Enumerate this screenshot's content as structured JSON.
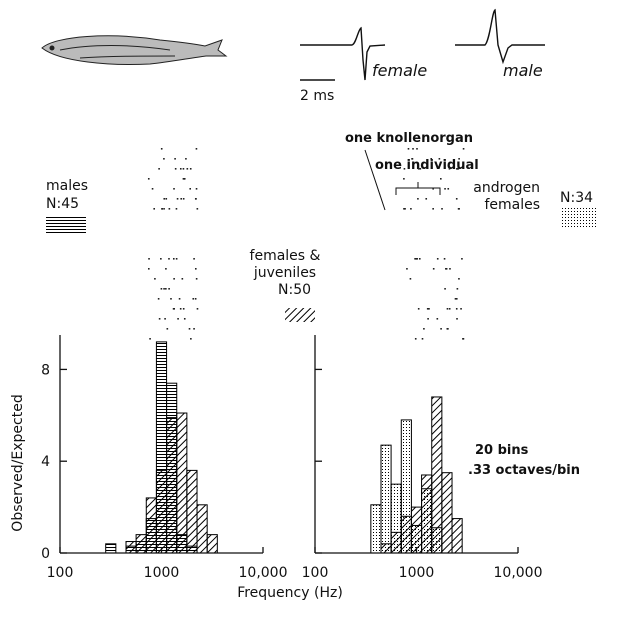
{
  "figure": {
    "waveform_labels": [
      "female",
      "male"
    ],
    "scale_bar": "2 ms",
    "one_knollenorgan": "one knollenorgan",
    "one_individual": "one individual"
  },
  "chart_data": [
    {
      "type": "histogram",
      "ylabel": "Observed/Expected",
      "xlabel": "Frequency (Hz)",
      "log_x": true,
      "xlim": [
        100,
        10000
      ],
      "xticks": [
        100,
        1000,
        {
          "value": 10000,
          "label": "10,000"
        }
      ],
      "ylim": [
        0,
        9.5
      ],
      "yticks": [
        0,
        4,
        8
      ],
      "show_ytick_labels": true,
      "bins": [
        282,
        355,
        447,
        562,
        708,
        891,
        1122,
        1413,
        1778,
        2239,
        2818,
        3548,
        4467
      ],
      "series": [
        {
          "name": "females & juveniles",
          "n_label": "N:50",
          "pattern": "diagonal",
          "color": "#000000",
          "values": [
            0,
            0,
            0.5,
            0.8,
            2.4,
            3.6,
            5.9,
            6.1,
            3.6,
            2.1,
            0.8,
            0
          ]
        },
        {
          "name": "males",
          "n_label": "N:45",
          "pattern": "horizontal",
          "color": "#000000",
          "values": [
            0.4,
            0,
            0.3,
            0.5,
            1.5,
            9.2,
            7.4,
            0.8,
            0.3,
            0,
            0,
            0
          ]
        }
      ]
    },
    {
      "type": "histogram",
      "log_x": true,
      "xlim": [
        100,
        10000
      ],
      "xticks": [
        100,
        1000,
        {
          "value": 10000,
          "label": "10,000"
        }
      ],
      "ylim": [
        0,
        9.5
      ],
      "yticks": [
        0,
        4,
        8
      ],
      "show_ytick_labels": false,
      "annotation": [
        "20 bins",
        ".33 octaves/bin"
      ],
      "bins": [
        282,
        355,
        447,
        562,
        708,
        891,
        1122,
        1413,
        1778,
        2239,
        2818,
        3548,
        4467
      ],
      "series": [
        {
          "pattern": "diagonal",
          "color": "#000000",
          "values": [
            0,
            0,
            0.4,
            0.9,
            1.6,
            2.0,
            3.4,
            6.8,
            3.5,
            1.5,
            0,
            0
          ]
        },
        {
          "name": "androgen females",
          "n_label": "N:34",
          "pattern": "dots",
          "color": "#000000",
          "values": [
            0,
            2.1,
            4.7,
            3.0,
            5.8,
            1.2,
            2.8,
            1.1,
            0,
            0,
            0,
            0
          ]
        }
      ]
    }
  ]
}
